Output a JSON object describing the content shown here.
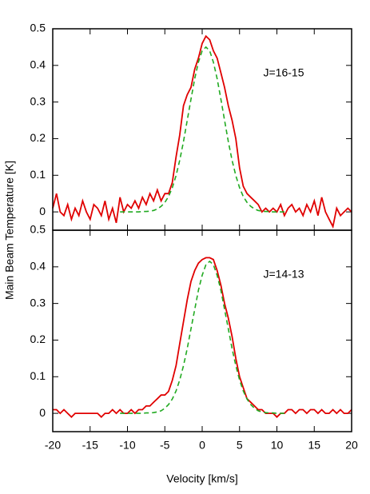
{
  "chart_data": [
    {
      "type": "line",
      "ylabel": "Main Beam Temperature [K]",
      "annotation": "J=16-15",
      "xlim": [
        -20,
        20
      ],
      "xticks": [
        -20,
        -15,
        -10,
        -5,
        0,
        5,
        10,
        15,
        20
      ],
      "ylim": [
        -0.05,
        0.5
      ],
      "yticks": [
        0,
        0.1,
        0.2,
        0.3,
        0.4,
        0.5
      ],
      "series": [
        {
          "color": "#e00000",
          "dash": false,
          "x": [
            -20,
            -19.5,
            -19,
            -18.5,
            -18,
            -17.5,
            -17,
            -16.5,
            -16,
            -15.5,
            -15,
            -14.5,
            -14,
            -13.5,
            -13,
            -12.5,
            -12,
            -11.5,
            -11,
            -10.5,
            -10,
            -9.5,
            -9,
            -8.5,
            -8,
            -7.5,
            -7,
            -6.5,
            -6,
            -5.5,
            -5,
            -4.5,
            -4,
            -3.5,
            -3,
            -2.5,
            -2,
            -1.5,
            -1,
            -0.5,
            0,
            0.5,
            1,
            1.5,
            2,
            2.5,
            3,
            3.5,
            4,
            4.5,
            5,
            5.5,
            6,
            6.5,
            7,
            7.5,
            8,
            8.5,
            9,
            9.5,
            10,
            10.5,
            11,
            11.5,
            12,
            12.5,
            13,
            13.5,
            14,
            14.5,
            15,
            15.5,
            16,
            16.5,
            17,
            17.5,
            18,
            18.5,
            19,
            19.5,
            20
          ],
          "values": [
            0.01,
            0.05,
            0.0,
            -0.01,
            0.02,
            -0.02,
            0.01,
            -0.01,
            0.03,
            0.0,
            -0.02,
            0.02,
            0.01,
            -0.01,
            0.03,
            -0.02,
            0.01,
            -0.03,
            0.04,
            0.0,
            0.02,
            0.01,
            0.03,
            0.01,
            0.04,
            0.02,
            0.05,
            0.03,
            0.06,
            0.03,
            0.05,
            0.05,
            0.08,
            0.15,
            0.21,
            0.29,
            0.32,
            0.34,
            0.39,
            0.42,
            0.46,
            0.48,
            0.47,
            0.44,
            0.42,
            0.38,
            0.34,
            0.29,
            0.25,
            0.2,
            0.12,
            0.07,
            0.05,
            0.04,
            0.03,
            0.02,
            0.0,
            0.01,
            0.0,
            0.01,
            0.0,
            0.02,
            -0.01,
            0.01,
            0.02,
            0.0,
            0.01,
            -0.01,
            0.02,
            0.0,
            0.03,
            -0.01,
            0.04,
            0.0,
            -0.02,
            -0.04,
            0.01,
            -0.01,
            0.0,
            0.01,
            0.0
          ]
        },
        {
          "color": "#22aa22",
          "dash": true,
          "x": [
            -11,
            -10.5,
            -10,
            -9.5,
            -9,
            -8.5,
            -8,
            -7.5,
            -7,
            -6.5,
            -6,
            -5.5,
            -5,
            -4.5,
            -4,
            -3.5,
            -3,
            -2.5,
            -2,
            -1.5,
            -1,
            -0.5,
            0,
            0.5,
            1,
            1.5,
            2,
            2.5,
            3,
            3.5,
            4,
            4.5,
            5,
            5.5,
            6,
            6.5,
            7,
            7.5,
            8,
            8.5,
            9,
            9.5,
            10,
            10.5,
            11
          ],
          "values": [
            0,
            0,
            0,
            0,
            0,
            0,
            0.001,
            0.001,
            0.002,
            0.004,
            0.008,
            0.015,
            0.026,
            0.042,
            0.066,
            0.099,
            0.141,
            0.192,
            0.25,
            0.308,
            0.364,
            0.409,
            0.44,
            0.45,
            0.44,
            0.409,
            0.364,
            0.308,
            0.25,
            0.192,
            0.141,
            0.099,
            0.066,
            0.042,
            0.026,
            0.015,
            0.008,
            0.004,
            0.002,
            0.001,
            0.001,
            0,
            0,
            0,
            0
          ]
        }
      ]
    },
    {
      "type": "line",
      "xlabel": "Velocity [km/s]",
      "annotation": "J=14-13",
      "xlim": [
        -20,
        20
      ],
      "xticks": [
        -20,
        -15,
        -10,
        -5,
        0,
        5,
        10,
        15,
        20
      ],
      "ylim": [
        -0.05,
        0.5
      ],
      "yticks": [
        0,
        0.1,
        0.2,
        0.3,
        0.4,
        0.5
      ],
      "series": [
        {
          "color": "#e00000",
          "dash": false,
          "x": [
            -20,
            -19.5,
            -19,
            -18.5,
            -18,
            -17.5,
            -17,
            -16.5,
            -16,
            -15.5,
            -15,
            -14.5,
            -14,
            -13.5,
            -13,
            -12.5,
            -12,
            -11.5,
            -11,
            -10.5,
            -10,
            -9.5,
            -9,
            -8.5,
            -8,
            -7.5,
            -7,
            -6.5,
            -6,
            -5.5,
            -5,
            -4.5,
            -4,
            -3.5,
            -3,
            -2.5,
            -2,
            -1.5,
            -1,
            -0.5,
            0,
            0.5,
            1,
            1.5,
            2,
            2.5,
            3,
            3.5,
            4,
            4.5,
            5,
            5.5,
            6,
            6.5,
            7,
            7.5,
            8,
            8.5,
            9,
            9.5,
            10,
            10.5,
            11,
            11.5,
            12,
            12.5,
            13,
            13.5,
            14,
            14.5,
            15,
            15.5,
            16,
            16.5,
            17,
            17.5,
            18,
            18.5,
            19,
            19.5,
            20
          ],
          "values": [
            0.01,
            0.01,
            0.0,
            0.01,
            0.0,
            -0.01,
            0.0,
            0.0,
            0.0,
            0.0,
            0.0,
            0.0,
            0.0,
            -0.01,
            0.0,
            0.0,
            0.01,
            0.0,
            0.01,
            0.0,
            0.0,
            0.01,
            0.0,
            0.01,
            0.01,
            0.02,
            0.02,
            0.03,
            0.04,
            0.05,
            0.05,
            0.06,
            0.09,
            0.13,
            0.19,
            0.25,
            0.31,
            0.36,
            0.39,
            0.41,
            0.42,
            0.425,
            0.425,
            0.42,
            0.39,
            0.35,
            0.3,
            0.26,
            0.21,
            0.15,
            0.1,
            0.07,
            0.04,
            0.03,
            0.02,
            0.01,
            0.01,
            0.0,
            0.0,
            0.0,
            -0.01,
            0.0,
            0.0,
            0.01,
            0.01,
            0.0,
            0.01,
            0.01,
            0.0,
            0.01,
            0.01,
            0.0,
            0.01,
            0.0,
            0.0,
            0.01,
            0.0,
            0.01,
            0.0,
            0.0,
            0.01
          ]
        },
        {
          "color": "#22aa22",
          "dash": true,
          "x": [
            -11,
            -10.5,
            -10,
            -9.5,
            -9,
            -8.5,
            -8,
            -7.5,
            -7,
            -6.5,
            -6,
            -5.5,
            -5,
            -4.5,
            -4,
            -3.5,
            -3,
            -2.5,
            -2,
            -1.5,
            -1,
            -0.5,
            0,
            0.5,
            1,
            1.5,
            2,
            2.5,
            3,
            3.5,
            4,
            4.5,
            5,
            5.5,
            6,
            6.5,
            7,
            7.5,
            8,
            8.5,
            9,
            9.5,
            10,
            10.5,
            11
          ],
          "values": [
            0,
            0,
            0,
            0,
            0,
            0,
            0,
            0.001,
            0.001,
            0.002,
            0.004,
            0.007,
            0.014,
            0.024,
            0.039,
            0.061,
            0.091,
            0.13,
            0.177,
            0.231,
            0.284,
            0.336,
            0.377,
            0.406,
            0.415,
            0.406,
            0.377,
            0.336,
            0.284,
            0.231,
            0.177,
            0.13,
            0.091,
            0.061,
            0.039,
            0.024,
            0.014,
            0.007,
            0.004,
            0.002,
            0.001,
            0.001,
            0,
            0,
            0
          ]
        }
      ]
    }
  ]
}
